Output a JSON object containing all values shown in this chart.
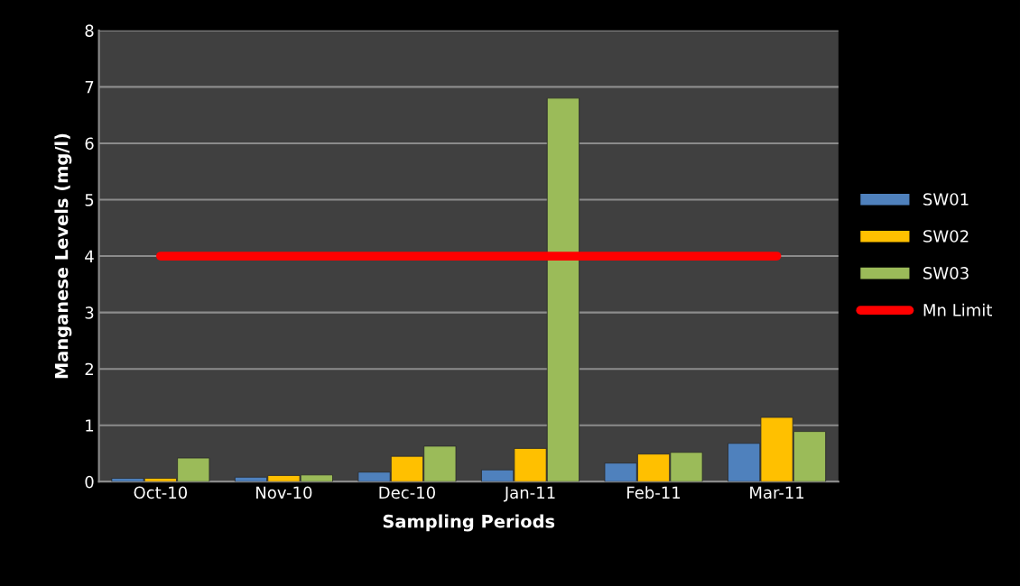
{
  "chart_data": {
    "type": "bar",
    "xlabel": "Sampling Periods",
    "ylabel": "Manganese Levels (mg/l)",
    "categories": [
      "Oct-10",
      "Nov-10",
      "Dec-10",
      "Jan-11",
      "Feb-11",
      "Mar-11"
    ],
    "series": [
      {
        "name": "SW01",
        "color": "#4f81bd",
        "values": [
          0.06,
          0.08,
          0.17,
          0.21,
          0.33,
          0.68
        ]
      },
      {
        "name": "SW02",
        "color": "#ffc000",
        "values": [
          0.06,
          0.11,
          0.45,
          0.59,
          0.49,
          1.14
        ]
      },
      {
        "name": "SW03",
        "color": "#9bbb59",
        "values": [
          0.42,
          0.12,
          0.63,
          6.8,
          0.52,
          0.89
        ]
      },
      {
        "name": "Mn Limit",
        "type": "line",
        "color": "#ff0000",
        "values": [
          4,
          4,
          4,
          4,
          4,
          4
        ]
      }
    ],
    "ylim": [
      0,
      8
    ],
    "yticks": [
      0,
      1,
      2,
      3,
      4,
      5,
      6,
      7,
      8
    ],
    "grid": "y",
    "legend": "right"
  }
}
